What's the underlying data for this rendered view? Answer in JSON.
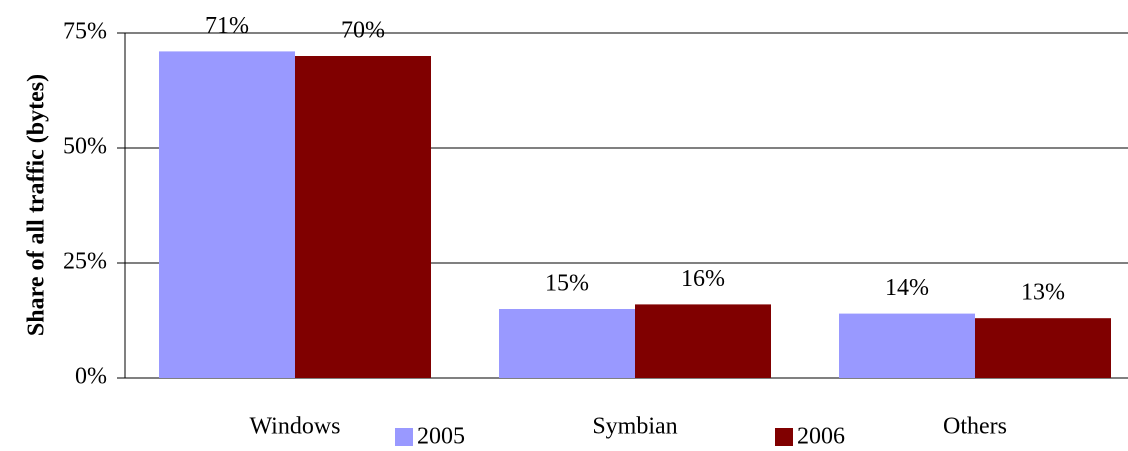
{
  "chart_data": {
    "type": "bar",
    "ylabel": "Share of all traffic (bytes)",
    "categories": [
      "Windows",
      "Symbian",
      "Others"
    ],
    "series": [
      {
        "name": "2005",
        "color": "#9999ff",
        "values": [
          71,
          15,
          14
        ],
        "value_labels": [
          "71%",
          "15%",
          "14%"
        ]
      },
      {
        "name": "2006",
        "color": "#800000",
        "values": [
          70,
          16,
          13
        ],
        "value_labels": [
          "70%",
          "16%",
          "13%"
        ]
      }
    ],
    "ylim": [
      0,
      75
    ],
    "yticks": [
      {
        "value": 0,
        "label": "0%"
      },
      {
        "value": 25,
        "label": "25%"
      },
      {
        "value": 50,
        "label": "50%"
      },
      {
        "value": 75,
        "label": "75%"
      }
    ],
    "grid": true,
    "legend": "bottom"
  }
}
